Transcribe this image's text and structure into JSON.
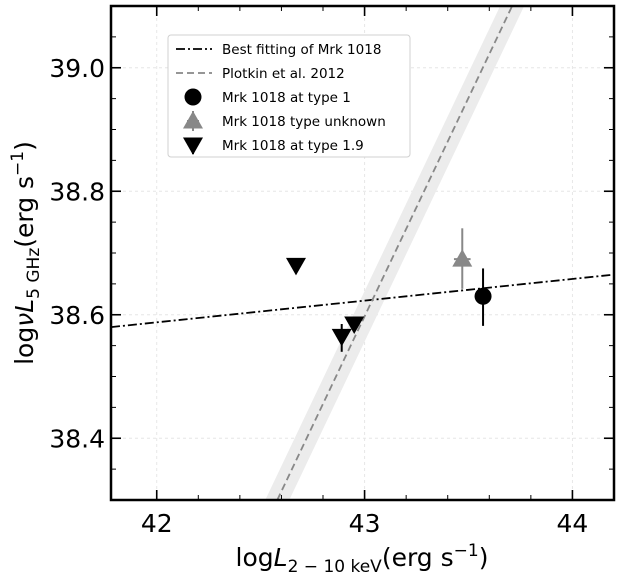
{
  "chart_data": {
    "type": "scatter",
    "xlabel": "log L_2-10keV (erg s^-1)",
    "ylabel": "log νL_5GHz (erg s^-1)",
    "xlim": [
      41.78,
      44.2
    ],
    "ylim": [
      38.3,
      39.1
    ],
    "xticks": [
      "42",
      "43",
      "44"
    ],
    "yticks": [
      "38.4",
      "38.6",
      "38.8",
      "39.0"
    ],
    "grid": true,
    "legend_position": "top-left",
    "series": [
      {
        "name": "Best fitting of Mrk 1018",
        "kind": "line",
        "style": "dash-dot",
        "color": "#000000",
        "points": [
          {
            "x": 41.78,
            "y": 38.58
          },
          {
            "x": 44.2,
            "y": 38.665
          }
        ]
      },
      {
        "name": "Plotkin et al. 2012",
        "kind": "line",
        "style": "dashed",
        "color": "#888888",
        "band_color": "#ececec",
        "points": [
          {
            "x": 42.58,
            "y": 38.3
          },
          {
            "x": 43.71,
            "y": 39.1
          }
        ]
      },
      {
        "name": "Mrk 1018 at type 1",
        "kind": "points",
        "marker": "circle",
        "color": "#000000",
        "points": [
          {
            "x": 43.57,
            "y": 38.63,
            "yerr_lo": 0.048,
            "yerr_hi": 0.045
          }
        ]
      },
      {
        "name": "Mrk 1018 type unknown",
        "kind": "points",
        "marker": "triangle-up",
        "color": "#888888",
        "points": [
          {
            "x": 43.47,
            "y": 38.69,
            "yerr_lo": 0.048,
            "yerr_hi": 0.05,
            "xerr": 0.04
          }
        ]
      },
      {
        "name": "Mrk 1018 at type 1.9",
        "kind": "points",
        "marker": "triangle-down",
        "color": "#000000",
        "points": [
          {
            "x": 42.67,
            "y": 38.68
          },
          {
            "x": 42.89,
            "y": 38.565,
            "yerr_lo": 0.025,
            "yerr_hi": 0.02
          },
          {
            "x": 42.95,
            "y": 38.585
          }
        ]
      }
    ]
  },
  "labels": {
    "x_main": "log",
    "x_italic": "L",
    "x_sub": "2 − 10 keV",
    "x_unit": "(erg s",
    "x_exp": "−1",
    "x_close": ")",
    "y_main": "log",
    "y_nu": "ν",
    "y_italic": "L",
    "y_sub": "5 GHz",
    "y_unit": "(erg s",
    "y_exp": "−1",
    "y_close": ")"
  }
}
